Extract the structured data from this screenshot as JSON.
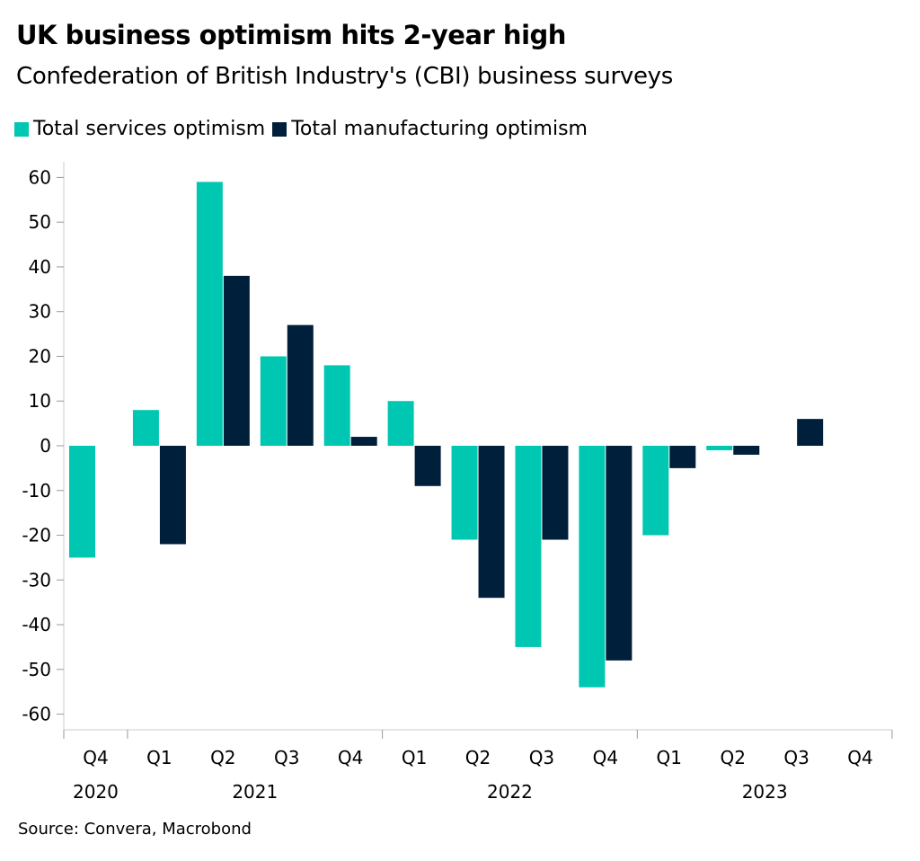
{
  "chart_data": {
    "type": "bar",
    "title": "UK business optimism hits 2-year high",
    "subtitle": "Confederation of British Industry's (CBI) business surveys",
    "source": "Source: Convera, Macrobond",
    "categories": [
      "Q4",
      "Q1",
      "Q2",
      "Q3",
      "Q4",
      "Q1",
      "Q2",
      "Q3",
      "Q4",
      "Q1",
      "Q2",
      "Q3",
      "Q4"
    ],
    "years": [
      {
        "label": "2020",
        "span": [
          0,
          0
        ]
      },
      {
        "label": "2021",
        "span": [
          1,
          4
        ]
      },
      {
        "label": "2022",
        "span": [
          5,
          8
        ]
      },
      {
        "label": "2023",
        "span": [
          9,
          12
        ]
      }
    ],
    "series": [
      {
        "name": "Total services optimism",
        "color": "#00C7B1",
        "values": [
          -25,
          8,
          59,
          20,
          18,
          10,
          -21,
          -45,
          -54,
          -20,
          -1,
          null,
          null
        ]
      },
      {
        "name": "Total manufacturing optimism",
        "color": "#001F3A",
        "values": [
          null,
          -22,
          38,
          27,
          2,
          -9,
          -34,
          -21,
          -48,
          -5,
          -2,
          6,
          null
        ]
      }
    ],
    "yticks": [
      60,
      50,
      40,
      30,
      20,
      10,
      0,
      -10,
      -20,
      -30,
      -40,
      -50,
      -60
    ],
    "ylim": [
      -63.5,
      63.5
    ],
    "grid": false,
    "legend_position": "top-left",
    "xlabel": "",
    "ylabel": ""
  }
}
